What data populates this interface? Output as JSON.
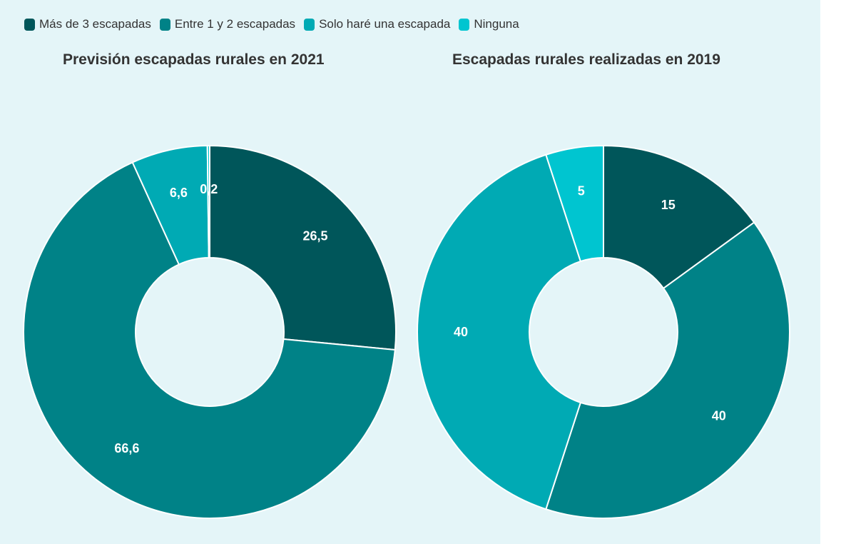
{
  "legend": [
    {
      "label": "Más de 3 escapadas",
      "color": "#00565a"
    },
    {
      "label": "Entre 1 y 2 escapadas",
      "color": "#008287"
    },
    {
      "label": "Solo haré una escapada",
      "color": "#00aab4"
    },
    {
      "label": "Ninguna",
      "color": "#00c5d0"
    }
  ],
  "chart_data": [
    {
      "type": "pie",
      "variant": "donut",
      "title": "Previsión escapadas rurales en 2021",
      "categories": [
        "Más de 3 escapadas",
        "Entre 1 y 2 escapadas",
        "Solo haré una escapada",
        "Ninguna"
      ],
      "values": [
        26.5,
        66.6,
        6.6,
        0.2
      ],
      "labels": [
        "26,5",
        "66,6",
        "6,6",
        "0,2"
      ],
      "colors": [
        "#00565a",
        "#008287",
        "#00aab4",
        "#00c5d0"
      ]
    },
    {
      "type": "pie",
      "variant": "donut",
      "title": "Escapadas rurales realizadas en 2019",
      "categories": [
        "Más de 3 escapadas",
        "Entre 1 y 2 escapadas",
        "Solo haré una escapada",
        "Ninguna"
      ],
      "values": [
        15,
        40,
        40,
        5
      ],
      "labels": [
        "15",
        "40",
        "40",
        "5"
      ],
      "colors": [
        "#00565a",
        "#008287",
        "#00aab4",
        "#00c5d0"
      ]
    }
  ]
}
